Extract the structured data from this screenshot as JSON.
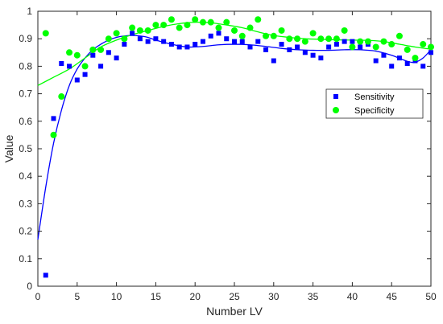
{
  "chart_data": {
    "type": "scatter",
    "title": "",
    "xlabel": "Number LV",
    "ylabel": "Value",
    "xlim": [
      0,
      50
    ],
    "ylim": [
      0,
      1
    ],
    "xticks": [
      0,
      5,
      10,
      15,
      20,
      25,
      30,
      35,
      40,
      45,
      50
    ],
    "yticks": [
      0,
      0.1,
      0.2,
      0.3,
      0.4,
      0.5,
      0.6,
      0.7,
      0.8,
      0.9,
      1
    ],
    "ytick_labels": [
      "0",
      "0.1",
      "0.2",
      "0.3",
      "0.4",
      "0.5",
      "0.6",
      "0.7",
      "0.8",
      "0.9",
      "1"
    ],
    "grid": false,
    "legend_position": "right",
    "series": [
      {
        "name": "Sensitivity",
        "marker": "square",
        "color": "#0000ff",
        "x": [
          1,
          2,
          3,
          4,
          5,
          6,
          7,
          8,
          9,
          10,
          11,
          12,
          13,
          14,
          15,
          16,
          17,
          18,
          19,
          20,
          21,
          22,
          23,
          24,
          25,
          26,
          27,
          28,
          29,
          30,
          31,
          32,
          33,
          34,
          35,
          36,
          37,
          38,
          39,
          40,
          41,
          42,
          43,
          44,
          45,
          46,
          47,
          48,
          49,
          50
        ],
        "y": [
          0.04,
          0.61,
          0.81,
          0.8,
          0.75,
          0.77,
          0.84,
          0.8,
          0.85,
          0.83,
          0.88,
          0.92,
          0.9,
          0.89,
          0.9,
          0.89,
          0.88,
          0.87,
          0.87,
          0.88,
          0.89,
          0.91,
          0.92,
          0.9,
          0.89,
          0.89,
          0.87,
          0.89,
          0.86,
          0.82,
          0.88,
          0.86,
          0.87,
          0.85,
          0.84,
          0.83,
          0.87,
          0.88,
          0.89,
          0.89,
          0.87,
          0.88,
          0.82,
          0.84,
          0.8,
          0.83,
          0.81,
          0.82,
          0.8,
          0.85
        ],
        "fit_curve": {
          "x": [
            0,
            1,
            2,
            3,
            4,
            5,
            6,
            7,
            8,
            9,
            10,
            11,
            12,
            13,
            14,
            15,
            17,
            19,
            21,
            23,
            25,
            27,
            29,
            31,
            33,
            35,
            37,
            39,
            41,
            43,
            45,
            47,
            48,
            49,
            50
          ],
          "y": [
            0.17,
            0.36,
            0.52,
            0.64,
            0.73,
            0.79,
            0.83,
            0.86,
            0.88,
            0.895,
            0.905,
            0.91,
            0.912,
            0.91,
            0.905,
            0.895,
            0.88,
            0.87,
            0.872,
            0.878,
            0.88,
            0.878,
            0.872,
            0.865,
            0.86,
            0.858,
            0.858,
            0.86,
            0.86,
            0.855,
            0.84,
            0.818,
            0.815,
            0.83,
            0.86
          ]
        }
      },
      {
        "name": "Specificity",
        "marker": "circle",
        "color": "#00ff00",
        "x": [
          1,
          2,
          3,
          4,
          5,
          6,
          7,
          8,
          9,
          10,
          11,
          12,
          13,
          14,
          15,
          16,
          17,
          18,
          19,
          20,
          21,
          22,
          23,
          24,
          25,
          26,
          27,
          28,
          29,
          30,
          31,
          32,
          33,
          34,
          35,
          36,
          37,
          38,
          39,
          40,
          41,
          42,
          43,
          44,
          45,
          46,
          47,
          48,
          49,
          50
        ],
        "y": [
          0.92,
          0.55,
          0.69,
          0.85,
          0.84,
          0.8,
          0.86,
          0.86,
          0.9,
          0.92,
          0.9,
          0.94,
          0.93,
          0.93,
          0.95,
          0.95,
          0.97,
          0.94,
          0.95,
          0.97,
          0.96,
          0.96,
          0.94,
          0.96,
          0.93,
          0.91,
          0.94,
          0.97,
          0.91,
          0.91,
          0.93,
          0.9,
          0.9,
          0.89,
          0.92,
          0.9,
          0.9,
          0.9,
          0.93,
          0.87,
          0.89,
          0.89,
          0.87,
          0.89,
          0.88,
          0.91,
          0.86,
          0.83,
          0.88,
          0.87
        ],
        "fit_curve": {
          "x": [
            0,
            2,
            4,
            6,
            8,
            10,
            12,
            14,
            16,
            18,
            20,
            22,
            24,
            26,
            28,
            30,
            32,
            34,
            36,
            38,
            40,
            42,
            44,
            46,
            48,
            50
          ],
          "y": [
            0.73,
            0.76,
            0.79,
            0.83,
            0.87,
            0.895,
            0.915,
            0.93,
            0.945,
            0.955,
            0.96,
            0.958,
            0.95,
            0.94,
            0.925,
            0.912,
            0.905,
            0.9,
            0.898,
            0.896,
            0.895,
            0.894,
            0.89,
            0.88,
            0.87,
            0.862
          ]
        }
      }
    ]
  }
}
